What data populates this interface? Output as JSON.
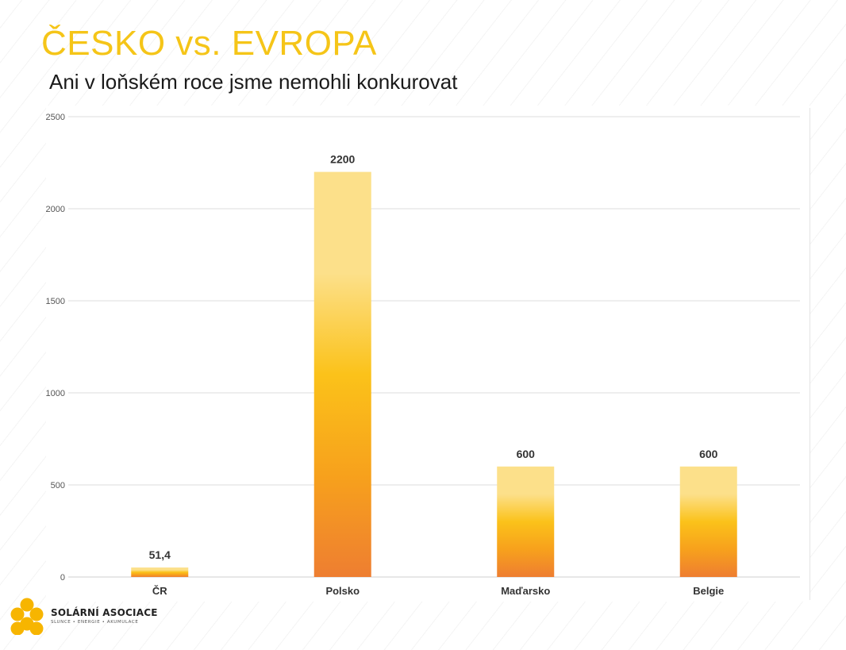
{
  "slide": {
    "title": "ČESKO vs. EVROPA",
    "subtitle": "Ani v loňském roce jsme nemohli konkurovat"
  },
  "chart_data": {
    "type": "bar",
    "categories": [
      "ČR",
      "Polsko",
      "Maďarsko",
      "Belgie"
    ],
    "values": [
      51.4,
      2200,
      600,
      600
    ],
    "data_labels": [
      "51,4",
      "2200",
      "600",
      "600"
    ],
    "yticks": [
      0,
      500,
      1000,
      1500,
      2000,
      2500
    ],
    "ylim": [
      0,
      2500
    ],
    "grid": true,
    "legend": "none",
    "bar_gradient": [
      "#FCE08A",
      "#FCE08A",
      "#FBC21A",
      "#F7A11C",
      "#EE7E31"
    ]
  },
  "logo": {
    "name": "SOLÁRNÍ ASOCIACE",
    "tagline": "SLUNCE • ENERGIE • AKUMULACE",
    "color": "#F7B500"
  }
}
